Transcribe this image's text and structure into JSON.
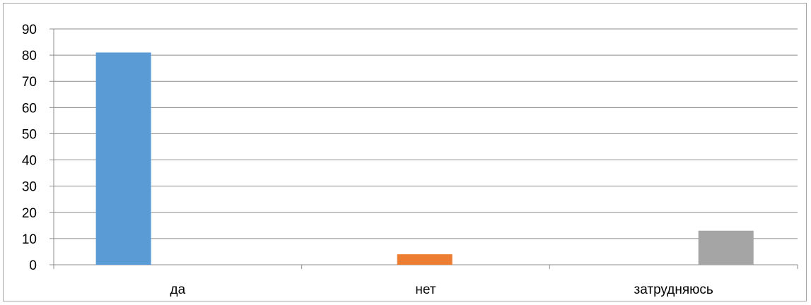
{
  "chart_data": {
    "type": "bar",
    "title": "",
    "xlabel": "",
    "ylabel": "",
    "categories": [
      "да",
      "нет",
      "затрудняюсь"
    ],
    "values": [
      81,
      4,
      13
    ],
    "ylim": [
      0,
      90
    ],
    "yticks": [
      0,
      10,
      20,
      30,
      40,
      50,
      60,
      70,
      80,
      90
    ],
    "colors": [
      "#5b9bd5",
      "#ed7d31",
      "#a5a5a5"
    ],
    "grid": true,
    "legend": "none"
  }
}
